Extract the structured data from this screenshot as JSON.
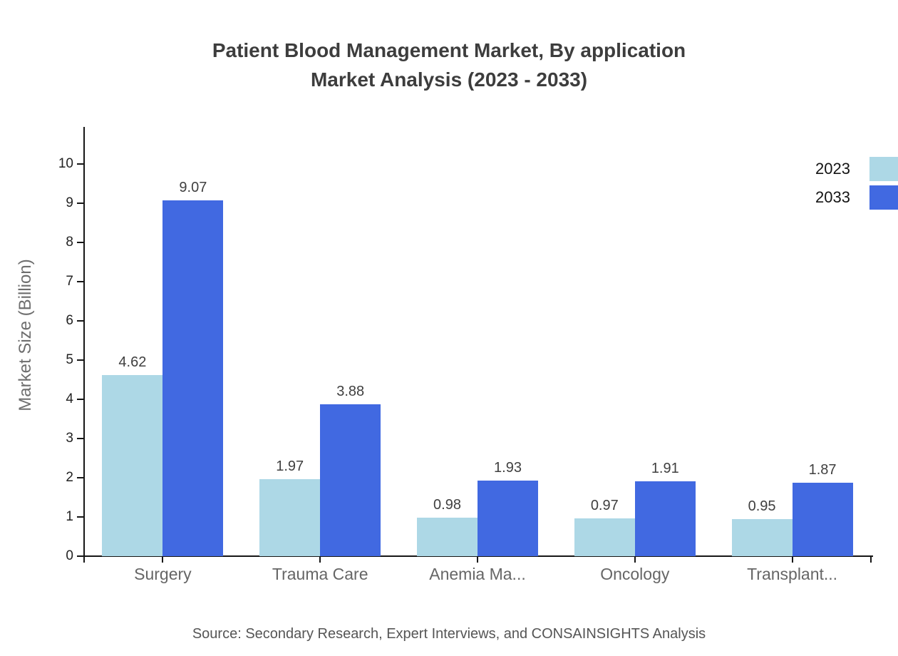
{
  "title": {
    "line1": "Patient Blood Management Market, By application",
    "line2": "Market Analysis (2023 - 2033)"
  },
  "y_axis": {
    "title": "Market Size (Billion)",
    "ticks": [
      0,
      1,
      2,
      3,
      4,
      5,
      6,
      7,
      8,
      9,
      10
    ]
  },
  "legend": [
    {
      "label": "2023",
      "color": "#ADD8E6"
    },
    {
      "label": "2033",
      "color": "#4169E1"
    }
  ],
  "source": "Source: Secondary Research, Expert Interviews, and CONSAINSIGHTS Analysis",
  "colors": {
    "series_2023": "#ADD8E6",
    "series_2033": "#4169E1",
    "axis": "#161616",
    "title_text": "#3d3d3d",
    "category_text": "#666666"
  },
  "chart_data": {
    "type": "bar",
    "categories": [
      "Surgery",
      "Trauma Care",
      "Anemia Ma...",
      "Oncology",
      "Transplant..."
    ],
    "series": [
      {
        "name": "2023",
        "color": "#ADD8E6",
        "values": [
          4.62,
          1.97,
          0.98,
          0.97,
          0.95
        ]
      },
      {
        "name": "2033",
        "color": "#4169E1",
        "values": [
          9.07,
          3.88,
          1.93,
          1.91,
          1.87
        ]
      }
    ],
    "title": "Patient Blood Management Market, By application Market Analysis (2023 - 2033)",
    "xlabel": "",
    "ylabel": "Market Size (Billion)",
    "ylim": [
      0,
      10
    ],
    "y_tick_step": 1,
    "grid": false,
    "value_labels": true,
    "legend_position": "top-right"
  }
}
